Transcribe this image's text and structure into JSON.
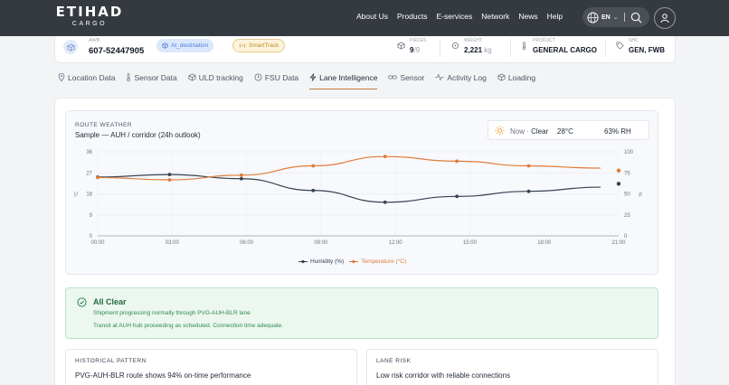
{
  "brand": {
    "name": "ETIHAD",
    "sub": "CARGO"
  },
  "nav": {
    "items": [
      "About Us",
      "Products",
      "E-services",
      "Network",
      "News",
      "Help"
    ],
    "lang": "EN"
  },
  "summary": {
    "awb_label": "AWB",
    "awb_value": "607-52447905",
    "status_badge": "At_destination",
    "smarttrack_badge": "SmartTrack",
    "pieces_label": "PIECES",
    "pieces_value": "9",
    "pieces_total": "/9",
    "weight_label": "WEIGHT",
    "weight_value": "2,221",
    "weight_unit": "kg",
    "product_label": "PRODUCT",
    "product_value": "GENERAL CARGO",
    "shc_label": "SHC",
    "shc_value": "GEN, FWB"
  },
  "tabs": [
    "Location Data",
    "Sensor Data",
    "ULD tracking",
    "FSU Data",
    "Lane Intelligence",
    "Sensor",
    "Activity Log",
    "Loading"
  ],
  "active_tab": "Lane Intelligence",
  "weather": {
    "title": "ROUTE WEATHER",
    "subtitle": "Sample — AUH / corridor (24h outlook)",
    "now_label": "Now ·",
    "now_condition": "Clear",
    "now_temp": "28°C",
    "now_rh": "63% RH"
  },
  "chart_data": {
    "type": "line",
    "x": [
      "00:00",
      "03:00",
      "06:00",
      "09:00",
      "12:00",
      "15:00",
      "18:00",
      "21:00"
    ],
    "series": [
      {
        "name": "Humidity (%)",
        "axis": "right",
        "color": "#374151",
        "values": [
          70,
          73,
          68,
          54,
          40,
          47,
          53,
          58
        ],
        "last_point": 62
      },
      {
        "name": "Temperature (°C)",
        "axis": "left",
        "color": "#e07b39",
        "values": [
          25,
          24,
          26,
          30,
          34,
          32,
          30,
          29
        ],
        "last_point": 28
      }
    ],
    "y_left": {
      "ticks": [
        0,
        9,
        18,
        27,
        36
      ],
      "ylim": [
        0,
        36
      ],
      "label": "°C"
    },
    "y_right": {
      "ticks": [
        0,
        25,
        50,
        75,
        100
      ],
      "ylim": [
        0,
        100
      ],
      "label": "%"
    },
    "legend": "bottom"
  },
  "alert": {
    "title": "All Clear",
    "line1": "Shipment progressing normally through PVG-AUH-BLR lane",
    "line2": "Transit at AUH hub proceeding as scheduled. Connection time adequate."
  },
  "historical": {
    "heading": "HISTORICAL PATTERN",
    "body": "PVG-AUH-BLR route shows 94% on-time performance"
  },
  "lane_risk": {
    "heading": "LANE RISK",
    "body": "Low risk corridor with reliable connections"
  }
}
